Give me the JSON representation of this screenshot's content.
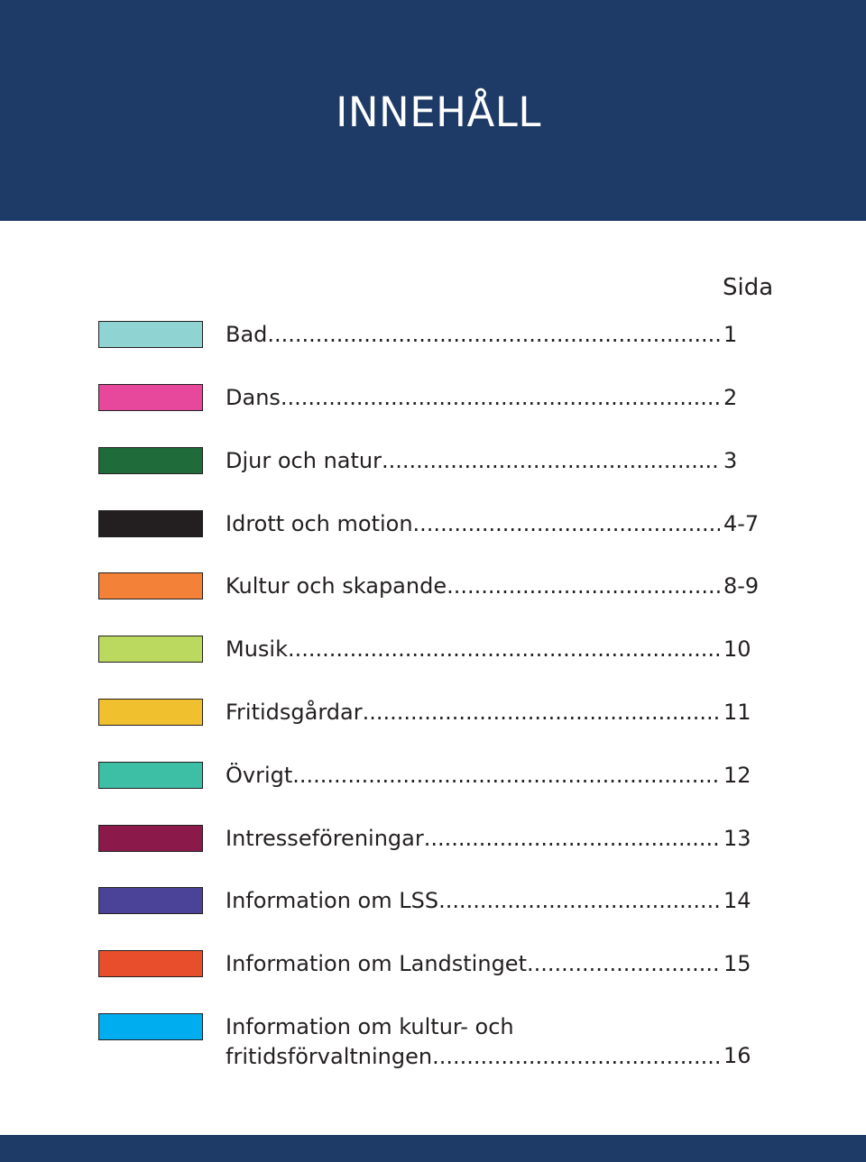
{
  "header": {
    "title": "INNEHÅLL",
    "background_color": "#1e3a66"
  },
  "column_header": "Sida",
  "entries": [
    {
      "label": "Bad",
      "page": "1",
      "color": "#8fd3d3"
    },
    {
      "label": "Dans",
      "page": "2",
      "color": "#e8489c"
    },
    {
      "label": "Djur och natur",
      "page": "3",
      "color": "#1f6b3a"
    },
    {
      "label": "Idrott och motion",
      "page": "4-7",
      "color": "#231f20"
    },
    {
      "label": "Kultur och skapande",
      "page": "8-9",
      "color": "#f38137"
    },
    {
      "label": "Musik",
      "page": "10",
      "color": "#bcd95f"
    },
    {
      "label": "Fritidsgårdar",
      "page": "11",
      "color": "#f0c02e"
    },
    {
      "label": "Övrigt",
      "page": "12",
      "color": "#3cbfa4"
    },
    {
      "label": "Intresseföreningar",
      "page": "13",
      "color": "#8b1a4a"
    },
    {
      "label": "Information om LSS",
      "page": "14",
      "color": "#4a4398"
    },
    {
      "label": "Information om Landstinget",
      "page": "15",
      "color": "#e84e2b"
    },
    {
      "label_line1": "Information om kultur- och",
      "label": "fritidsförvaltningen",
      "page": "16",
      "color": "#00adef"
    }
  ]
}
